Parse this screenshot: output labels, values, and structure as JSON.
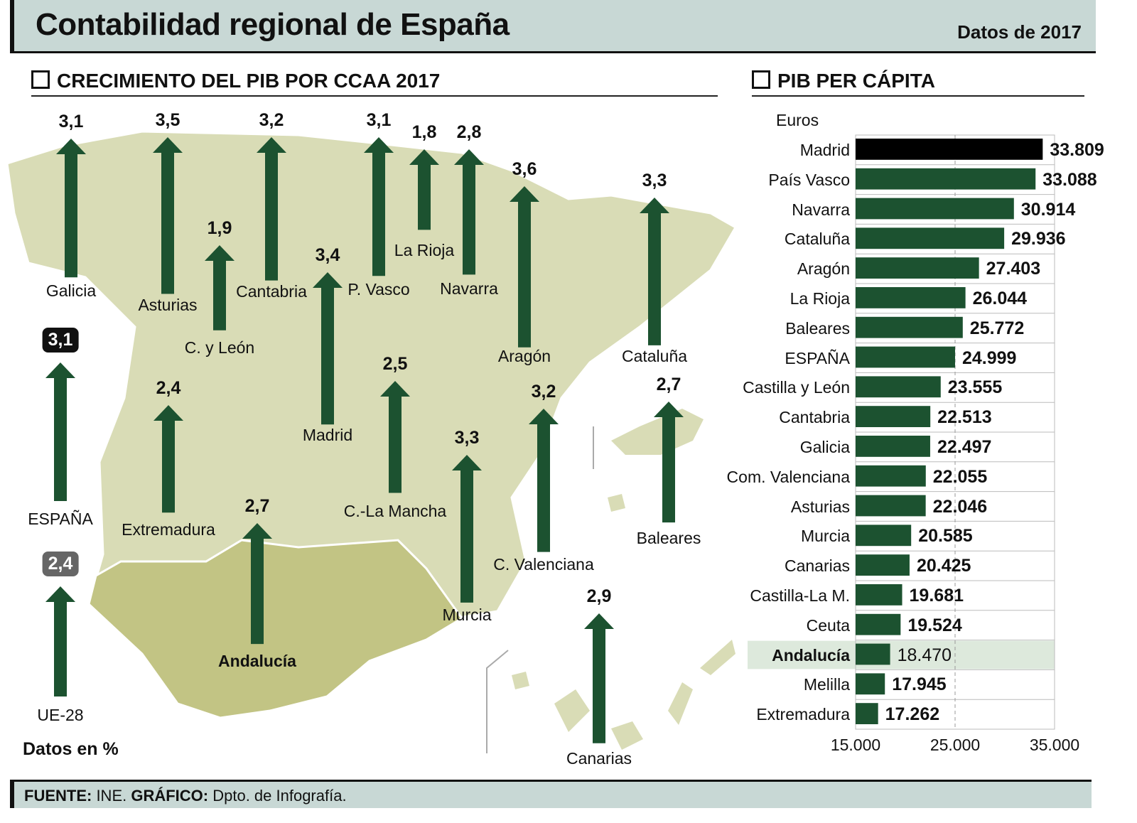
{
  "header": {
    "title": "Contabilidad regional de España",
    "date": "Datos de 2017"
  },
  "map_section": {
    "title": "CRECIMIENTO DEL PIB POR CCAA 2017",
    "note": "Datos en %"
  },
  "bar_section": {
    "title": "PIB PER CÁPITA",
    "units": "Euros"
  },
  "footer": {
    "source_label": "FUENTE:",
    "source": " INE. ",
    "graphic_label": "GRÁFICO:",
    "graphic": " Dpto. de Infografía."
  },
  "colors": {
    "arrow": "#1c5230",
    "bar": "#1c5230",
    "madrid_bar": "#000000",
    "map_land": "#d9dcb6",
    "andalucia": "#c2c484",
    "highlight_row": "#dde9dc",
    "header_bg": "#c8d8d5",
    "espana_badge": "#111111",
    "ue_badge": "#666666"
  },
  "chart_data": [
    {
      "type": "bar",
      "title": "CRECIMIENTO DEL PIB POR CCAA 2017",
      "ylabel": "%",
      "categories": [
        "Galicia",
        "Asturias",
        "Cantabria",
        "C. y León",
        "Madrid",
        "P. Vasco",
        "La Rioja",
        "Navarra",
        "Aragón",
        "Cataluña",
        "C.-La Mancha",
        "Extremadura",
        "Andalucía",
        "Murcia",
        "C. Valenciana",
        "Baleares",
        "Canarias",
        "ESPAÑA",
        "UE-28"
      ],
      "values": [
        "3,1",
        "3,5",
        "3,2",
        "1,9",
        "3,4",
        "3,1",
        "1,8",
        "2,8",
        "3,6",
        "3,3",
        "2,5",
        "2,4",
        "2,7",
        "3,3",
        "3,2",
        "2,7",
        "2,9",
        "3,1",
        "2,4"
      ]
    },
    {
      "type": "bar",
      "orientation": "horizontal",
      "title": "PIB PER CÁPITA",
      "xlabel": "Euros",
      "xlim": [
        15000,
        35000
      ],
      "xticks": [
        "15.000",
        "25.000",
        "35.000"
      ],
      "grid": "dashed line at 25.000",
      "categories": [
        "Madrid",
        "País Vasco",
        "Navarra",
        "Cataluña",
        "Aragón",
        "La Rioja",
        "Baleares",
        "ESPAÑA",
        "Castilla y León",
        "Cantabria",
        "Galicia",
        "Com. Valenciana",
        "Asturias",
        "Murcia",
        "Canarias",
        "Castilla-La M.",
        "Ceuta",
        "Andalucía",
        "Melilla",
        "Extremadura"
      ],
      "values": [
        33809,
        33088,
        30914,
        29936,
        27403,
        26044,
        25772,
        24999,
        23555,
        22513,
        22497,
        22055,
        22046,
        20585,
        20425,
        19681,
        19524,
        18470,
        17945,
        17262
      ],
      "labels": [
        "33.809",
        "33.088",
        "30.914",
        "29.936",
        "27.403",
        "26.044",
        "25.772",
        "24.999",
        "23.555",
        "22.513",
        "22.497",
        "22.055",
        "22.046",
        "20.585",
        "20.425",
        "19.681",
        "19.524",
        "18.470",
        "17.945",
        "17.262"
      ],
      "highlight": "Andalucía"
    }
  ]
}
